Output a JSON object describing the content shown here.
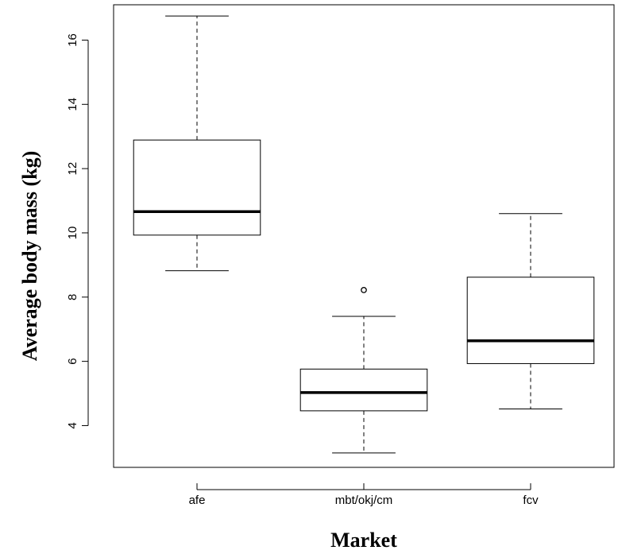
{
  "chart_data": {
    "type": "boxplot",
    "title": "",
    "xlabel": "Market",
    "ylabel": "Average body mass (kg)",
    "ylim": [
      2.7,
      17.1
    ],
    "yticks": [
      4,
      6,
      8,
      10,
      12,
      14,
      16
    ],
    "grid": false,
    "categories": [
      "afe",
      "mbt/okj/cm",
      "fcv"
    ],
    "boxes": [
      {
        "category": "afe",
        "whisker_low": 8.82,
        "q1": 9.93,
        "median": 10.66,
        "q3": 12.89,
        "whisker_high": 16.75,
        "outliers": []
      },
      {
        "category": "mbt/okj/cm",
        "whisker_low": 3.15,
        "q1": 4.46,
        "median": 5.03,
        "q3": 5.76,
        "whisker_high": 7.4,
        "outliers": [
          8.22
        ]
      },
      {
        "category": "fcv",
        "whisker_low": 4.52,
        "q1": 5.93,
        "median": 6.64,
        "q3": 8.62,
        "whisker_high": 10.6,
        "outliers": []
      }
    ]
  }
}
